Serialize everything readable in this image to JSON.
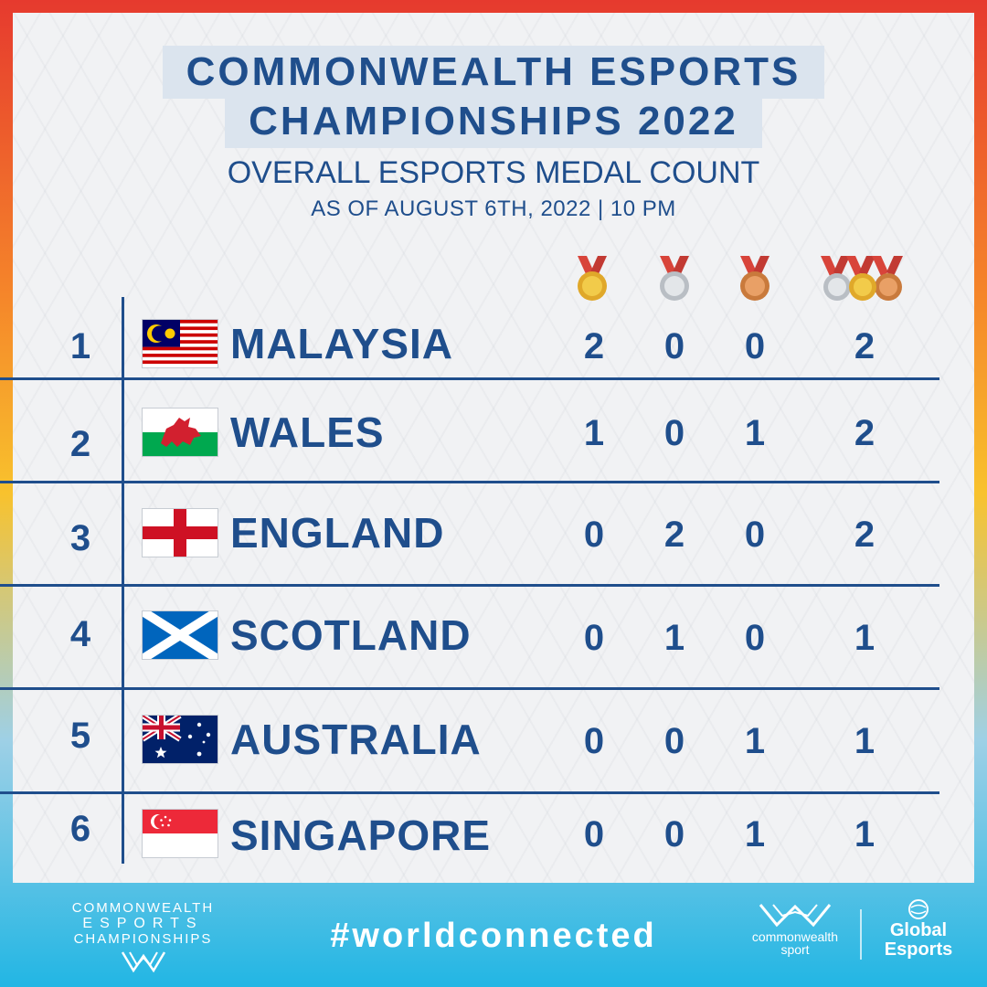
{
  "header": {
    "title_line1": "COMMONWEALTH ESPORTS",
    "title_line2": "CHAMPIONSHIPS 2022",
    "subtitle": "OVERALL ESPORTS MEDAL COUNT",
    "date": "AS OF AUGUST 6TH, 2022 | 10 PM"
  },
  "medal_columns": [
    {
      "icon": "gold-medal-icon",
      "color": "#e8b92e"
    },
    {
      "icon": "silver-medal-icon",
      "color": "#c8ccd1"
    },
    {
      "icon": "bronze-medal-icon",
      "color": "#d88a4a"
    },
    {
      "icon": "total-medals-icon",
      "color": "#e8b92e"
    }
  ],
  "rows": [
    {
      "rank": "1",
      "country": "MALAYSIA",
      "flag": "malaysia-flag-icon",
      "gold": "2",
      "silver": "0",
      "bronze": "0",
      "total": "2"
    },
    {
      "rank": "2",
      "country": "WALES",
      "flag": "wales-flag-icon",
      "gold": "1",
      "silver": "0",
      "bronze": "1",
      "total": "2"
    },
    {
      "rank": "3",
      "country": "ENGLAND",
      "flag": "england-flag-icon",
      "gold": "0",
      "silver": "2",
      "bronze": "0",
      "total": "2"
    },
    {
      "rank": "4",
      "country": "SCOTLAND",
      "flag": "scotland-flag-icon",
      "gold": "0",
      "silver": "1",
      "bronze": "0",
      "total": "1"
    },
    {
      "rank": "5",
      "country": "AUSTRALIA",
      "flag": "australia-flag-icon",
      "gold": "0",
      "silver": "0",
      "bronze": "1",
      "total": "1"
    },
    {
      "rank": "6",
      "country": "SINGAPORE",
      "flag": "singapore-flag-icon",
      "gold": "0",
      "silver": "0",
      "bronze": "1",
      "total": "1"
    }
  ],
  "footer": {
    "left_logo_line1": "COMMONWEALTH",
    "left_logo_line2": "ESPORTS",
    "left_logo_line3": "CHAMPIONSHIPS",
    "hashtag": "#worldconnected",
    "cw_line1": "commonwealth",
    "cw_line2": "sport",
    "ge_line1": "Global",
    "ge_line2": "Esports"
  },
  "colors": {
    "primary": "#1f4e8c",
    "gold": "#e8b92e",
    "silver": "#c8ccd1",
    "bronze": "#d88a4a"
  }
}
